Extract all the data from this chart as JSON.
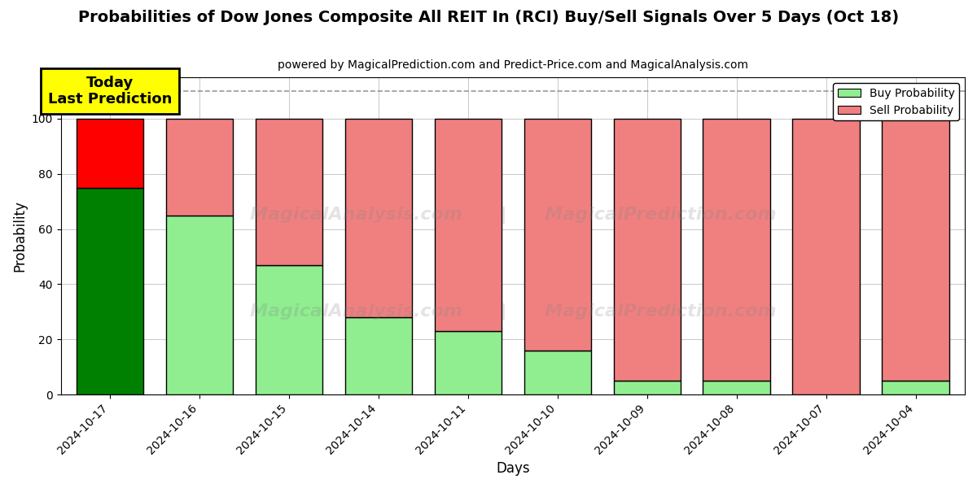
{
  "title": "Probabilities of Dow Jones Composite All REIT In (RCI) Buy/Sell Signals Over 5 Days (Oct 18)",
  "subtitle": "powered by MagicalPrediction.com and Predict-Price.com and MagicalAnalysis.com",
  "xlabel": "Days",
  "ylabel": "Probability",
  "days": [
    "2024-10-17",
    "2024-10-16",
    "2024-10-15",
    "2024-10-14",
    "2024-10-11",
    "2024-10-10",
    "2024-10-09",
    "2024-10-08",
    "2024-10-07",
    "2024-10-04"
  ],
  "buy_probs": [
    75,
    65,
    47,
    28,
    23,
    16,
    5,
    5,
    0,
    5
  ],
  "sell_probs": [
    25,
    35,
    53,
    72,
    77,
    84,
    95,
    95,
    100,
    95
  ],
  "today_buy_color": "#008000",
  "today_sell_color": "#FF0000",
  "buy_color": "#90EE90",
  "sell_color": "#F08080",
  "today_annotation": "Today\nLast Prediction",
  "legend_buy": "Buy Probability",
  "legend_sell": "Sell Probability",
  "ylim": [
    0,
    115
  ],
  "dashed_line_y": 110,
  "bar_edgecolor": "#000000",
  "bar_linewidth": 1.0
}
